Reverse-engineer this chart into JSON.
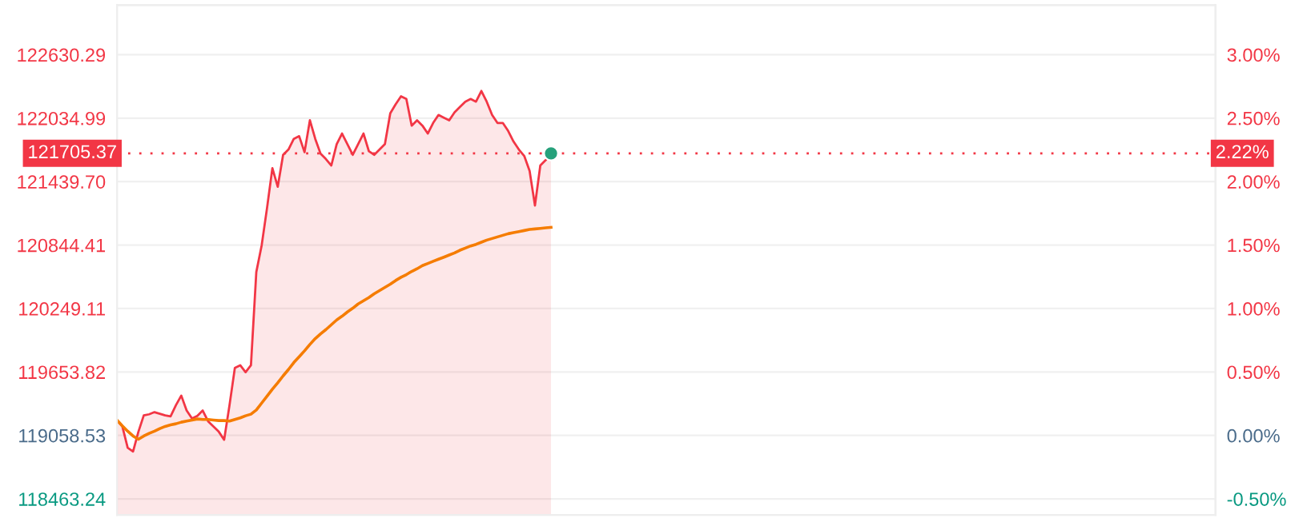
{
  "chart_data": {
    "type": "area",
    "categories": [
      null,
      null,
      null,
      null,
      null,
      null,
      null,
      null,
      null,
      null,
      null,
      null,
      null,
      null,
      null,
      null,
      null,
      null,
      null,
      null,
      null,
      null,
      null,
      null,
      null,
      null,
      null,
      null,
      null,
      null,
      null,
      null,
      null,
      null,
      null,
      null,
      null,
      null,
      null,
      null,
      null,
      null,
      null,
      null,
      null,
      null,
      null,
      null,
      null,
      null,
      null,
      null,
      null,
      null,
      null,
      null,
      null,
      null,
      null,
      null,
      null,
      null,
      null,
      null,
      null,
      null,
      null,
      null,
      null,
      null,
      null,
      null,
      null,
      null,
      null,
      null,
      null,
      null,
      null,
      null,
      null,
      null,
      null,
      null,
      null,
      null,
      null,
      null,
      null,
      null,
      null,
      null,
      null,
      null,
      null,
      null,
      null,
      null,
      null,
      null,
      null,
      null,
      null,
      null,
      null,
      null,
      null,
      null,
      null,
      null,
      null,
      null,
      null,
      null,
      null,
      null,
      null,
      null,
      null,
      null,
      null,
      null,
      null,
      null,
      null,
      null,
      null,
      null,
      null,
      null,
      null,
      null,
      null,
      null,
      null,
      null,
      null,
      null,
      null,
      null,
      null,
      null,
      null,
      null,
      null,
      null,
      null,
      null,
      null,
      null,
      null,
      null,
      null,
      null,
      null,
      null,
      null,
      null,
      null,
      null,
      null,
      null,
      null,
      null,
      null,
      null,
      null,
      null,
      null,
      null,
      null,
      null,
      null,
      null,
      null,
      null,
      null,
      null,
      null,
      null,
      null,
      null,
      null,
      null,
      null,
      null,
      null,
      null,
      null,
      null,
      null,
      null,
      null,
      null,
      null,
      null,
      null,
      null,
      null,
      null,
      null,
      null,
      null,
      null,
      null,
      null
    ],
    "series": [
      {
        "color": "#f23645",
        "values": [
          119202,
          119143,
          118943,
          118908,
          119093,
          119247,
          119257,
          119277,
          119262,
          119247,
          119237,
          119342,
          119432,
          119292,
          119217,
          119242,
          119292,
          119192,
          119143,
          119093,
          119018,
          119342,
          119692,
          119717,
          119652,
          119717,
          120591,
          120841,
          121191,
          121566,
          121391,
          121691,
          121741,
          121841,
          121866,
          121716,
          122015,
          121841,
          121701,
          121651,
          121591,
          121791,
          121891,
          121791,
          121691,
          121791,
          121891,
          121726,
          121691,
          121741,
          121791,
          122080,
          122165,
          122240,
          122215,
          121965,
          122015,
          121965,
          121891,
          121990,
          122065,
          122040,
          122015,
          122090,
          122140,
          122190,
          122215,
          122190,
          122290,
          122190,
          122065,
          121990,
          121990,
          121915,
          121816,
          121741,
          121681,
          121541,
          121216,
          121591,
          121641,
          121705,
          null,
          null,
          null,
          null,
          null,
          null,
          null,
          null,
          null,
          null,
          null,
          null,
          null,
          null,
          null,
          null,
          null,
          null,
          null,
          null,
          null,
          null,
          null,
          null,
          null,
          null,
          null,
          null,
          null,
          null,
          null,
          null,
          null,
          null,
          null,
          null,
          null,
          null,
          null,
          null,
          null,
          null,
          null,
          null,
          null,
          null,
          null,
          null,
          null,
          null,
          null,
          null,
          null,
          null,
          null,
          null,
          null,
          null,
          null,
          null,
          null,
          null,
          null,
          null,
          null,
          null,
          null,
          null,
          null,
          null,
          null,
          null,
          null,
          null,
          null,
          null,
          null,
          null,
          null,
          null,
          null,
          null,
          null,
          null,
          null,
          null,
          null,
          null,
          null,
          null,
          null,
          null,
          null,
          null,
          null,
          null,
          null,
          null,
          null,
          null,
          null,
          null,
          null,
          null,
          null,
          null,
          null,
          null,
          null,
          null,
          null,
          null,
          null,
          null,
          null,
          null,
          null,
          null,
          null,
          null,
          null,
          null,
          null,
          null
        ]
      },
      {
        "type": "line",
        "color": "#f57c00",
        "values": [
          119202,
          119148,
          119098,
          119053,
          119023,
          119053,
          119078,
          119098,
          119123,
          119143,
          119158,
          119168,
          119183,
          119193,
          119203,
          119213,
          119208,
          119208,
          119203,
          119198,
          119198,
          119193,
          119208,
          119223,
          119243,
          119258,
          119297,
          119362,
          119427,
          119492,
          119552,
          119617,
          119677,
          119742,
          119797,
          119852,
          119912,
          119967,
          120012,
          120052,
          120097,
          120142,
          120177,
          120217,
          120252,
          120292,
          120322,
          120352,
          120387,
          120417,
          120447,
          120477,
          120512,
          120542,
          120567,
          120597,
          120622,
          120652,
          120672,
          120692,
          120712,
          120731,
          120751,
          120771,
          120796,
          120816,
          120836,
          120851,
          120871,
          120891,
          120906,
          120921,
          120936,
          120951,
          120961,
          120971,
          120981,
          120991,
          120996,
          121001,
          121006,
          121011,
          null,
          null,
          null,
          null,
          null,
          null,
          null,
          null,
          null,
          null,
          null,
          null,
          null,
          null,
          null,
          null,
          null,
          null,
          null,
          null,
          null,
          null,
          null,
          null,
          null,
          null,
          null,
          null,
          null,
          null,
          null,
          null,
          null,
          null,
          null,
          null,
          null,
          null,
          null,
          null,
          null,
          null,
          null,
          null,
          null,
          null,
          null,
          null,
          null,
          null,
          null,
          null,
          null,
          null,
          null,
          null,
          null,
          null,
          null,
          null,
          null,
          null,
          null,
          null,
          null,
          null,
          null,
          null,
          null,
          null,
          null,
          null,
          null,
          null,
          null,
          null,
          null,
          null,
          null,
          null,
          null,
          null,
          null,
          null,
          null,
          null,
          null,
          null,
          null,
          null,
          null,
          null,
          null,
          null,
          null,
          null,
          null,
          null,
          null,
          null,
          null,
          null,
          null,
          null,
          null,
          null,
          null,
          null,
          null,
          null,
          null,
          null,
          null,
          null,
          null,
          null,
          null,
          null,
          null,
          null,
          null,
          null,
          null,
          null
        ]
      },
      {
        "type": "scatter",
        "color": "#26a17b",
        "values": [
          null,
          null,
          null,
          null,
          null,
          null,
          null,
          null,
          null,
          null,
          null,
          null,
          null,
          null,
          null,
          null,
          null,
          null,
          null,
          null,
          null,
          null,
          null,
          null,
          null,
          null,
          null,
          null,
          null,
          null,
          null,
          null,
          null,
          null,
          null,
          null,
          null,
          null,
          null,
          null,
          null,
          null,
          null,
          null,
          null,
          null,
          null,
          null,
          null,
          null,
          null,
          null,
          null,
          null,
          null,
          null,
          null,
          null,
          null,
          null,
          null,
          null,
          null,
          null,
          null,
          null,
          null,
          null,
          null,
          null,
          null,
          null,
          null,
          null,
          null,
          null,
          null,
          null,
          null,
          null,
          null,
          121705,
          null,
          null,
          null,
          null,
          null,
          null,
          null,
          null,
          null,
          null,
          null,
          null,
          null,
          null,
          null,
          null,
          null,
          null,
          null,
          null,
          null,
          null,
          null,
          null,
          null,
          null,
          null,
          null,
          null,
          null,
          null,
          null,
          null,
          null,
          null,
          null,
          null,
          null,
          null,
          null,
          null,
          null,
          null,
          null,
          null,
          null,
          null,
          null,
          null,
          null,
          null,
          null,
          null,
          null,
          null,
          null,
          null,
          null,
          null,
          null,
          null,
          null,
          null,
          null,
          null,
          null,
          null,
          null,
          null,
          null,
          null,
          null,
          null,
          null,
          null,
          null,
          null,
          null,
          null,
          null,
          null,
          null,
          null,
          null,
          null,
          null,
          null,
          null,
          null,
          null,
          null,
          null,
          null,
          null,
          null,
          null,
          null,
          null,
          null,
          null,
          null,
          null,
          null,
          null,
          null,
          null,
          null,
          null,
          null,
          null,
          null,
          null,
          null,
          null,
          null,
          null,
          null,
          null,
          null,
          null,
          null,
          null,
          null,
          null
        ]
      }
    ],
    "ylim": [
      118313,
      123095
    ],
    "yticks": [
      {
        "value": 118463.24,
        "label": "118463.24"
      },
      {
        "value": 119058.53,
        "label": "119058.53"
      },
      {
        "value": 119653.82,
        "label": "119653.82"
      },
      {
        "value": 120249.11,
        "label": "120249.11"
      },
      {
        "value": 120844.41,
        "label": "120844.41"
      },
      {
        "value": 121439.7,
        "label": "121439.70"
      },
      {
        "value": 122034.99,
        "label": "122034.99"
      },
      {
        "value": 122630.29,
        "label": "122630.29"
      }
    ],
    "y2lim": [
      -0.626,
      3.39
    ],
    "y2ticks": [
      {
        "value": -0.5,
        "label": "-0.50%"
      },
      {
        "value": 0,
        "label": "0.00%"
      },
      {
        "value": 0.5,
        "label": "0.50%"
      },
      {
        "value": 1,
        "label": "1.00%"
      },
      {
        "value": 1.5,
        "label": "1.50%"
      },
      {
        "value": 2,
        "label": "2.00%"
      },
      {
        "value": 2.5,
        "label": "2.50%"
      },
      {
        "value": 3,
        "label": "3.00%"
      }
    ],
    "ref_lines": [
      {
        "axis": "y",
        "value": 121705.37,
        "label": "121705.37",
        "color": "#f23645",
        "line_style": "dotted"
      }
    ],
    "annotations": [
      "2.22%"
    ],
    "grid": "y",
    "legend": false
  }
}
